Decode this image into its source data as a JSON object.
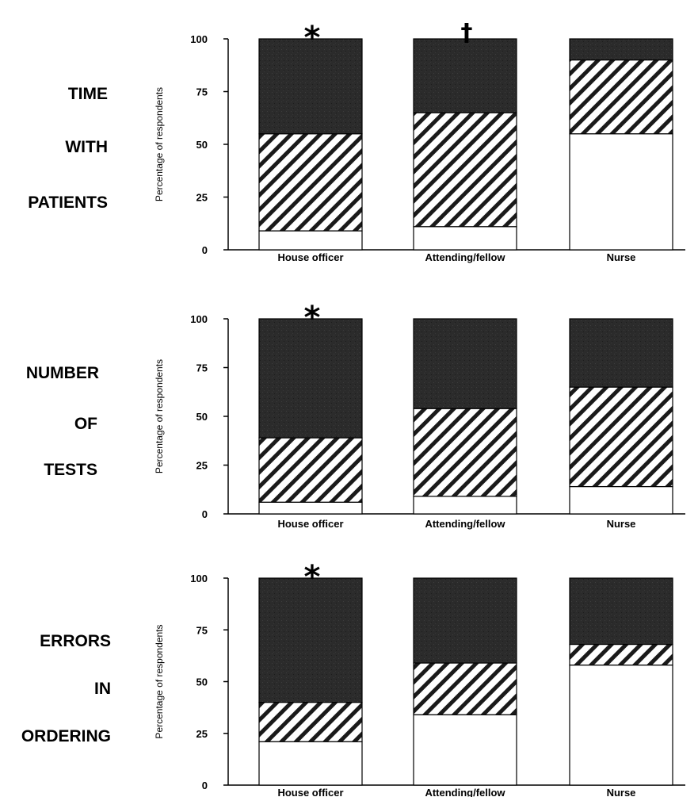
{
  "colors": {
    "dark": "#2a2a2a",
    "hatch": "#1a1a1a",
    "light": "#ffffff",
    "axis": "#000000"
  },
  "chart_data": [
    {
      "type": "bar",
      "stacked": true,
      "row_label": [
        "TIME",
        "WITH",
        "PATIENTS"
      ],
      "ylabel": "Percentage of respondents",
      "ylim": [
        0,
        100
      ],
      "yticks": [
        "0",
        "25",
        "50",
        "75",
        "100"
      ],
      "categories": [
        "House officer",
        "Attending/fellow",
        "Nurse"
      ],
      "markers": [
        "*",
        "†",
        ""
      ],
      "series": [
        {
          "fill": "light",
          "values": [
            9,
            11,
            55
          ]
        },
        {
          "fill": "hatch",
          "values": [
            46,
            54,
            35
          ]
        },
        {
          "fill": "dark",
          "values": [
            45,
            35,
            10
          ]
        }
      ]
    },
    {
      "type": "bar",
      "stacked": true,
      "row_label": [
        "NUMBER",
        "OF",
        "TESTS"
      ],
      "ylabel": "Percentage of respondents",
      "ylim": [
        0,
        100
      ],
      "yticks": [
        "0",
        "25",
        "50",
        "75",
        "100"
      ],
      "categories": [
        "House officer",
        "Attending/fellow",
        "Nurse"
      ],
      "markers": [
        "*",
        "",
        ""
      ],
      "series": [
        {
          "fill": "light",
          "values": [
            6,
            9,
            14
          ]
        },
        {
          "fill": "hatch",
          "values": [
            33,
            45,
            51
          ]
        },
        {
          "fill": "dark",
          "values": [
            61,
            46,
            35
          ]
        }
      ]
    },
    {
      "type": "bar",
      "stacked": true,
      "row_label": [
        "ERRORS",
        "IN",
        "ORDERING"
      ],
      "ylabel": "Percentage of respondents",
      "ylim": [
        0,
        100
      ],
      "yticks": [
        "0",
        "25",
        "50",
        "75",
        "100"
      ],
      "categories": [
        "House officer",
        "Attending/fellow",
        "Nurse"
      ],
      "markers": [
        "*",
        "",
        ""
      ],
      "series": [
        {
          "fill": "light",
          "values": [
            21,
            34,
            58
          ]
        },
        {
          "fill": "hatch",
          "values": [
            19,
            25,
            10
          ]
        },
        {
          "fill": "dark",
          "values": [
            60,
            41,
            32
          ]
        }
      ]
    }
  ]
}
